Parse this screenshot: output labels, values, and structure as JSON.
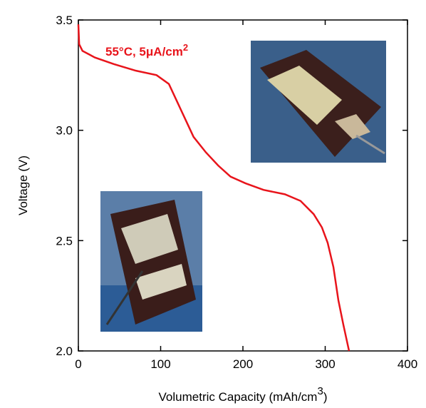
{
  "chart_data": {
    "type": "line",
    "annotation": [
      "55°C, 5μA/cm",
      "2"
    ],
    "annotation_color": "#e8141b",
    "x_label": [
      "Volumetric Capacity (mAh/cm",
      "3",
      ")"
    ],
    "y_label": "Voltage (V)",
    "xlim": [
      0,
      400
    ],
    "xticks": [
      0,
      100,
      200,
      300,
      400
    ],
    "ylim": [
      2.0,
      3.5
    ],
    "yticks": [
      {
        "value": 2,
        "label": "2.0"
      },
      2.5,
      {
        "value": 3,
        "label": "3.0"
      },
      3.5
    ],
    "series": [
      {
        "color": "#e8141b",
        "x": [
          0,
          1,
          5,
          20,
          43,
          70,
          95,
          110,
          120,
          130,
          140,
          155,
          170,
          185,
          203,
          225,
          251,
          270,
          286,
          296,
          303,
          310,
          316,
          322,
          329
        ],
        "values": [
          3.48,
          3.39,
          3.36,
          3.33,
          3.3,
          3.27,
          3.25,
          3.21,
          3.13,
          3.05,
          2.97,
          2.9,
          2.84,
          2.79,
          2.76,
          2.73,
          2.71,
          2.68,
          2.62,
          2.56,
          2.49,
          2.38,
          2.23,
          2.12,
          2.0
        ]
      }
    ]
  }
}
